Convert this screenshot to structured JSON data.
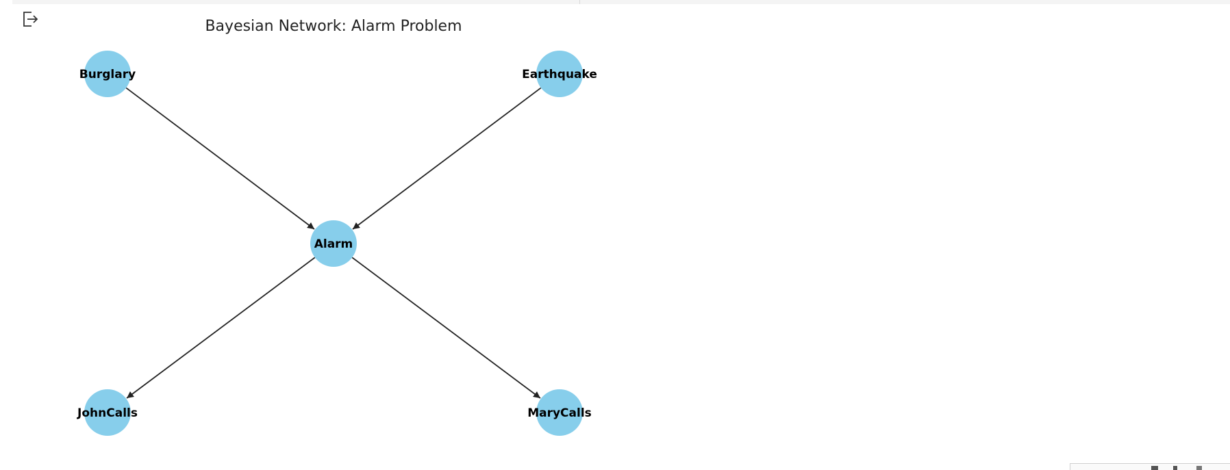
{
  "toolbar": {
    "export_icon": "export-icon"
  },
  "diagram": {
    "title": "Bayesian Network: Alarm Problem",
    "node_color": "#87CEEB",
    "edge_color": "#222222",
    "nodes": [
      {
        "id": "Burglary",
        "label": "Burglary"
      },
      {
        "id": "Earthquake",
        "label": "Earthquake"
      },
      {
        "id": "Alarm",
        "label": "Alarm"
      },
      {
        "id": "JohnCalls",
        "label": "JohnCalls"
      },
      {
        "id": "MaryCalls",
        "label": "MaryCalls"
      }
    ],
    "edges": [
      {
        "from": "Burglary",
        "to": "Alarm"
      },
      {
        "from": "Earthquake",
        "to": "Alarm"
      },
      {
        "from": "Alarm",
        "to": "JohnCalls"
      },
      {
        "from": "Alarm",
        "to": "MaryCalls"
      }
    ]
  }
}
